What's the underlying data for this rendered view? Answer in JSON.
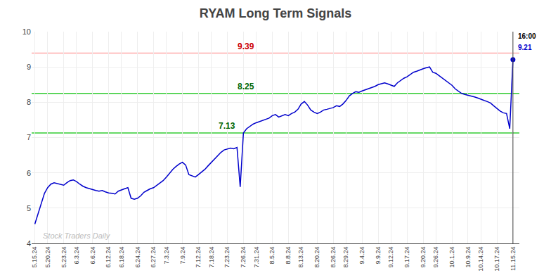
{
  "chart_data": {
    "type": "line",
    "title": "RYAM Long Term Signals",
    "color": "#0000cc",
    "grid": true,
    "ylim": [
      4,
      10
    ],
    "yticks": [
      4,
      5,
      6,
      7,
      8,
      9,
      10
    ],
    "categories": [
      "5.15.24",
      null,
      null,
      null,
      "5.20.24",
      null,
      null,
      null,
      null,
      "5.23.24",
      null,
      null,
      null,
      "6.3.24",
      null,
      null,
      null,
      null,
      "6.6.24",
      null,
      null,
      null,
      null,
      "6.12.24",
      null,
      null,
      null,
      "6.18.24",
      null,
      null,
      null,
      null,
      "6.24.24",
      null,
      null,
      null,
      null,
      "6.27.24",
      null,
      null,
      null,
      "7.3.24",
      null,
      null,
      null,
      null,
      "7.9.24",
      null,
      null,
      null,
      null,
      "7.12.24",
      null,
      null,
      null,
      "7.18.24",
      null,
      null,
      null,
      null,
      "7.23.24",
      null,
      null,
      null,
      null,
      "7.26.24",
      null,
      null,
      null,
      "7.31.24",
      null,
      null,
      null,
      null,
      "8.5.24",
      null,
      null,
      null,
      null,
      "8.8.24",
      null,
      null,
      null,
      "8.13.24",
      null,
      null,
      null,
      null,
      "8.20.24",
      null,
      null,
      null,
      null,
      "8.26.24",
      null,
      null,
      null,
      "8.29.24",
      null,
      null,
      null,
      null,
      "9.4.24",
      null,
      null,
      null,
      null,
      "9.9.24",
      null,
      null,
      null,
      "9.12.24",
      null,
      null,
      null,
      null,
      "9.17.24",
      null,
      null,
      null,
      null,
      "9.20.24",
      null,
      null,
      null,
      "9.26.24",
      null,
      null,
      null,
      null,
      "10.1.24",
      null,
      null,
      null,
      null,
      "10.9.24",
      null,
      null,
      null,
      "10.14.24",
      null,
      null,
      null,
      null,
      "10.17.24",
      null,
      null,
      null,
      null,
      "11.15.24"
    ],
    "values": [
      4.55,
      4.85,
      5.15,
      5.42,
      5.58,
      5.68,
      5.72,
      5.7,
      5.68,
      5.65,
      5.72,
      5.78,
      5.8,
      5.75,
      5.68,
      5.62,
      5.58,
      5.55,
      5.52,
      5.5,
      5.48,
      5.5,
      5.46,
      5.43,
      5.42,
      5.4,
      5.48,
      5.52,
      5.55,
      5.58,
      5.28,
      5.25,
      5.28,
      5.35,
      5.45,
      5.5,
      5.55,
      5.58,
      5.65,
      5.72,
      5.78,
      5.88,
      6.0,
      6.1,
      6.18,
      6.25,
      6.3,
      6.22,
      5.95,
      5.92,
      5.88,
      5.95,
      6.02,
      6.1,
      6.2,
      6.3,
      6.4,
      6.5,
      6.58,
      6.65,
      6.68,
      6.7,
      6.68,
      6.72,
      5.6,
      7.13,
      7.25,
      7.32,
      7.38,
      7.42,
      7.45,
      7.48,
      7.52,
      7.55,
      7.62,
      7.65,
      7.58,
      7.62,
      7.65,
      7.62,
      7.68,
      7.72,
      7.8,
      7.95,
      8.02,
      7.92,
      7.78,
      7.72,
      7.68,
      7.72,
      7.78,
      7.8,
      7.82,
      7.85,
      7.9,
      7.88,
      7.95,
      8.05,
      8.18,
      8.25,
      8.3,
      8.28,
      8.32,
      8.35,
      8.38,
      8.42,
      8.45,
      8.5,
      8.52,
      8.55,
      8.52,
      8.48,
      8.45,
      8.55,
      8.62,
      8.68,
      8.72,
      8.78,
      8.85,
      8.88,
      8.92,
      8.95,
      8.98,
      9.0,
      8.85,
      8.82,
      8.75,
      8.68,
      8.62,
      8.55,
      8.48,
      8.38,
      8.32,
      8.25,
      8.22,
      8.2,
      8.18,
      8.15,
      8.12,
      8.08,
      8.05,
      8.02,
      7.98,
      7.9,
      7.82,
      7.75,
      7.7,
      7.68,
      7.25,
      9.21
    ],
    "reference_lines": [
      {
        "y": 9.39,
        "label": "9.39",
        "color": "#ffaaaa",
        "label_color": "#cc0000"
      },
      {
        "y": 8.25,
        "label": "8.25",
        "color": "#33cc33",
        "label_color": "#006600"
      },
      {
        "y": 7.13,
        "label": "7.13",
        "color": "#33cc33",
        "label_color": "#006600"
      }
    ],
    "last_point_annotations": [
      {
        "text": "16:00",
        "color": "#000000"
      },
      {
        "text": "9.21",
        "color": "#0000cc"
      }
    ],
    "watermark": {
      "text": "Stock Traders Daily",
      "color": "#bbbbbb"
    }
  }
}
